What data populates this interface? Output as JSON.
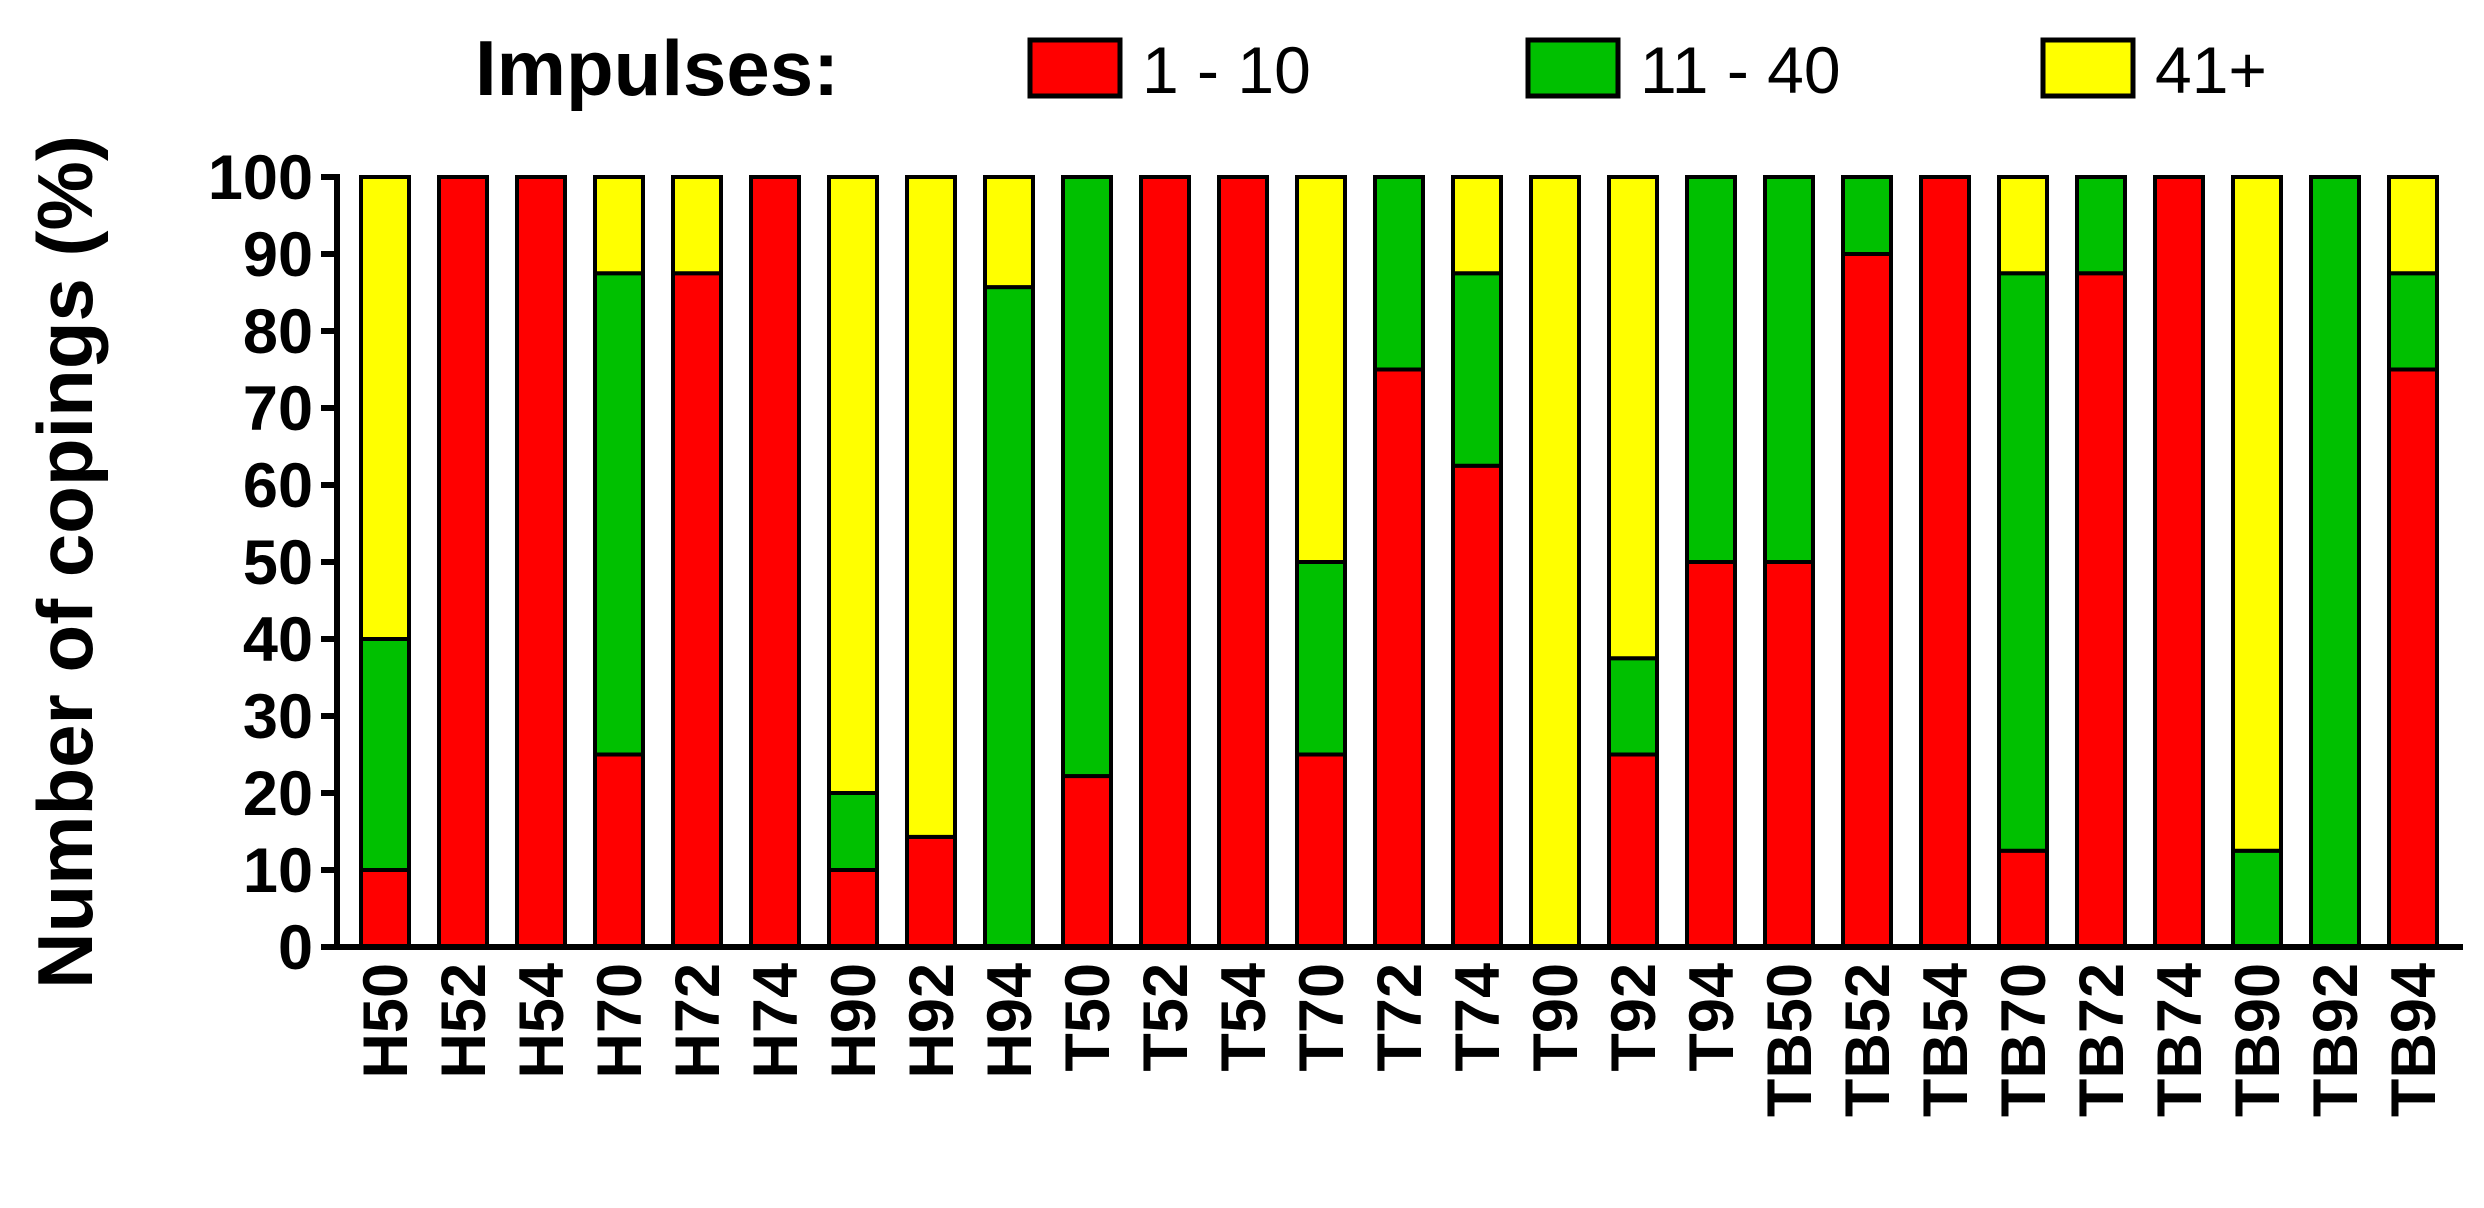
{
  "chart_data": {
    "type": "stacked_bar",
    "ylabel": "Number of copings (%)",
    "legend_title": "Impulses:",
    "legend": "top",
    "categories": [
      "H50",
      "H52",
      "H54",
      "H70",
      "H72",
      "H74",
      "H90",
      "H92",
      "H94",
      "T50",
      "T52",
      "T54",
      "T70",
      "T72",
      "T74",
      "T90",
      "T92",
      "T94",
      "TB50",
      "TB52",
      "TB54",
      "TB70",
      "TB72",
      "TB74",
      "TB90",
      "TB92",
      "TB94"
    ],
    "series": [
      {
        "name": "1 - 10",
        "color": "#ff0000",
        "values": [
          10,
          100,
          100,
          25,
          87.5,
          100,
          10,
          14.3,
          0,
          22.2,
          100,
          100,
          25,
          75,
          62.5,
          0,
          25,
          50,
          50,
          90,
          100,
          12.5,
          87.5,
          100,
          0,
          0,
          75
        ]
      },
      {
        "name": "11 - 40",
        "color": "#00c000",
        "values": [
          30,
          0,
          0,
          62.5,
          0,
          0,
          10,
          0,
          85.7,
          77.8,
          0,
          0,
          25,
          25,
          25,
          0,
          12.5,
          50,
          50,
          10,
          0,
          75,
          12.5,
          0,
          12.5,
          100,
          12.5
        ]
      },
      {
        "name": "41+",
        "color": "#ffff00",
        "values": [
          60,
          0,
          0,
          12.5,
          12.5,
          0,
          80,
          85.7,
          14.3,
          0,
          0,
          0,
          50,
          0,
          12.5,
          100,
          62.5,
          0,
          0,
          0,
          0,
          12.5,
          0,
          0,
          87.5,
          0,
          12.5
        ]
      }
    ],
    "ylim": [
      0,
      100
    ],
    "yticks": [
      0,
      10,
      20,
      30,
      40,
      50,
      60,
      70,
      80,
      90,
      100
    ]
  }
}
